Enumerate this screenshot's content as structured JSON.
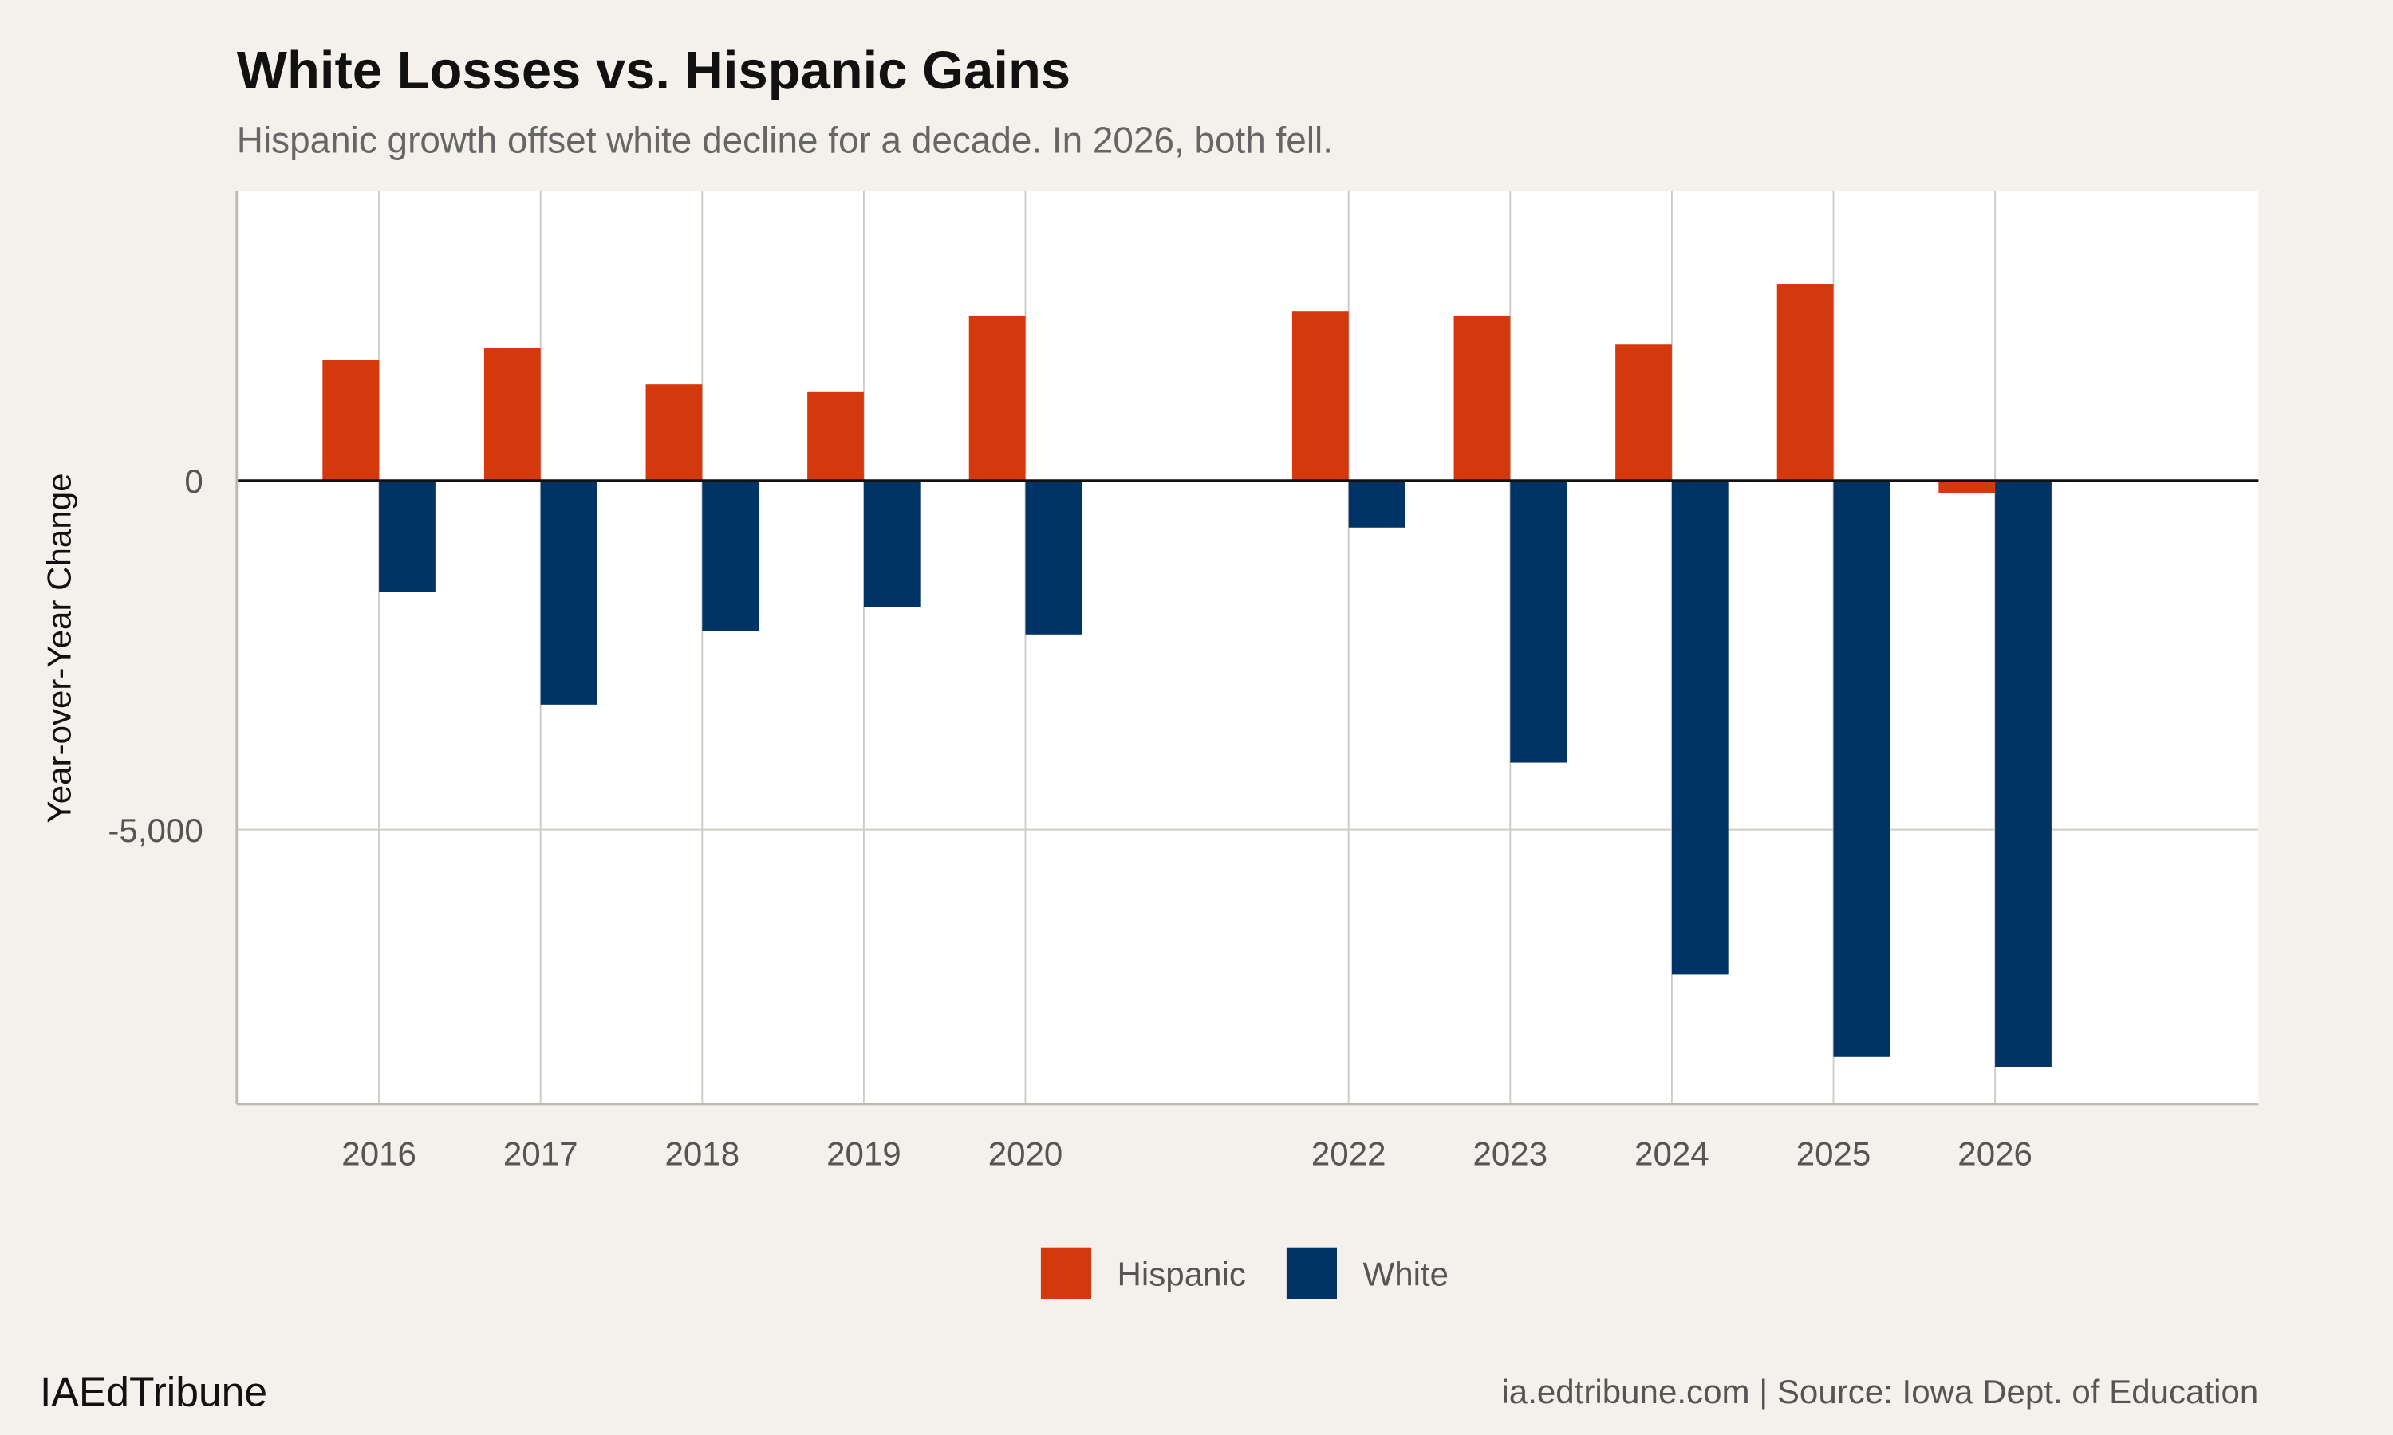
{
  "chart_data": {
    "type": "bar",
    "title": "White Losses vs. Hispanic Gains",
    "subtitle": "Hispanic growth offset white decline for a decade. In 2026, both fell.",
    "xlabel": "",
    "ylabel": "Year-over-Year Change",
    "categories": [
      2016,
      2017,
      2018,
      2019,
      2020,
      2022,
      2023,
      2024,
      2025,
      2026
    ],
    "x_tick_labels": [
      "2016",
      "2017",
      "2018",
      "2019",
      "2020",
      "2022",
      "2023",
      "2024",
      "2025",
      "2026"
    ],
    "y_ticks": [
      0,
      -5000
    ],
    "y_tick_labels": [
      "0",
      "-5,000"
    ],
    "ylim": [
      -8930,
      4150
    ],
    "xlim": [
      2015.12,
      2027.63
    ],
    "grid": true,
    "legend_position": "bottom",
    "series": [
      {
        "name": "Hispanic",
        "color": "#d4380d",
        "values": [
          1725,
          1900,
          1375,
          1265,
          2360,
          2425,
          2360,
          1945,
          2815,
          -175
        ]
      },
      {
        "name": "White",
        "color": "#003366",
        "values": [
          -1595,
          -3210,
          -2160,
          -1810,
          -2205,
          -675,
          -4040,
          -7075,
          -8255,
          -8405
        ]
      }
    ]
  },
  "footer": {
    "brand": "IAEdTribune",
    "source": "ia.edtribune.com | Source: Iowa Dept. of Education"
  }
}
